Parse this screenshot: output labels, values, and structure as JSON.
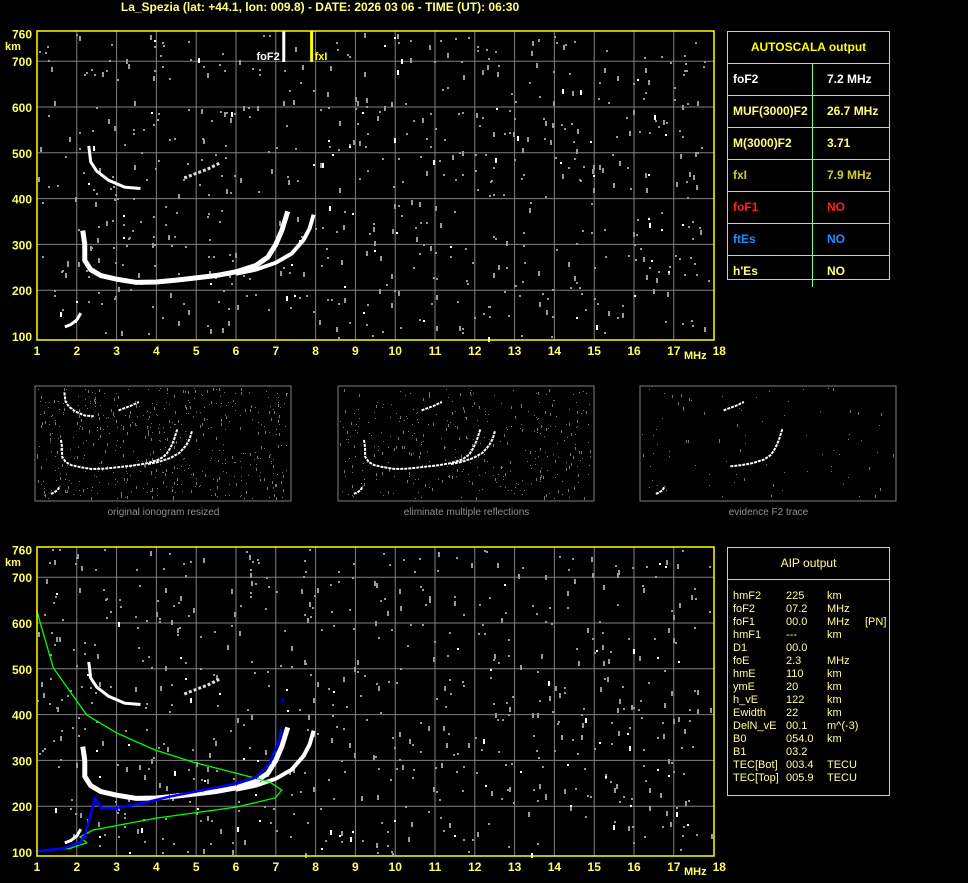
{
  "title": "La_Spezia (lat: +44.1, lon: 009.8) - DATE: 2026 03 06 - TIME (UT): 06:30",
  "autoscala": {
    "header": "AUTOSCALA output",
    "rows": [
      {
        "key": "foF2",
        "value": "7.2 MHz",
        "color": "#ffffff"
      },
      {
        "key": "MUF(3000)F2",
        "value": "26.7 MHz",
        "color": "#ffff80"
      },
      {
        "key": "M(3000)F2",
        "value": "3.71",
        "color": "#ffff80"
      },
      {
        "key": "fxI",
        "value": "7.9 MHz",
        "color": "#cccc33"
      },
      {
        "key": "foF1",
        "value": "NO",
        "color": "#ff2020"
      },
      {
        "key": "ftEs",
        "value": "NO",
        "color": "#1e8fff"
      },
      {
        "key": "h'Es",
        "value": "NO",
        "color": "#ffff80"
      }
    ]
  },
  "aip": {
    "header": "AIP output",
    "rows": [
      [
        "hmF2",
        "225",
        "km",
        ""
      ],
      [
        "foF2",
        "07.2",
        "MHz",
        ""
      ],
      [
        "foF1",
        "00.0",
        "MHz",
        "[PN]"
      ],
      [
        "hmF1",
        "---",
        "km",
        ""
      ],
      [
        "D1",
        "00.0",
        "",
        ""
      ],
      [
        "foE",
        "2.3",
        "MHz",
        ""
      ],
      [
        "hmE",
        "110",
        "km",
        ""
      ],
      [
        "ymE",
        "20",
        "km",
        ""
      ],
      [
        "h_vE",
        "122",
        "km",
        ""
      ],
      [
        "Ewidth",
        "22",
        "km",
        ""
      ],
      [
        "DelN_vE",
        "00.1",
        "m^(-3)",
        ""
      ],
      [
        "B0",
        "054.0",
        "km",
        ""
      ],
      [
        "B1",
        "03.2",
        "",
        ""
      ],
      [
        "TEC[Bot]",
        "003.4",
        "TECU",
        ""
      ],
      [
        "TEC[Top]",
        "005.9",
        "TECU",
        ""
      ]
    ]
  },
  "thumbnails": {
    "captions": [
      "original ionogram resized",
      "eliminate multiple reflections",
      "evidence F2 trace"
    ]
  },
  "markers": {
    "foF2": {
      "label": "foF2",
      "freq": 7.2,
      "color": "#ffffff"
    },
    "fxI": {
      "label": "fxI",
      "freq": 7.9,
      "color": "#ffff00"
    }
  },
  "chart_data": {
    "type": "scatter",
    "xlabel": "MHz",
    "ylabel": "km",
    "xlim": [
      1,
      18
    ],
    "ylim": [
      100,
      760
    ],
    "xticks": [
      "1",
      "2",
      "3",
      "4",
      "5",
      "6",
      "7",
      "8",
      "9",
      "10",
      "11",
      "12",
      "13",
      "14",
      "15",
      "16",
      "17",
      "18"
    ],
    "yticks": [
      "760",
      "700",
      "600",
      "500",
      "400",
      "300",
      "200",
      "100"
    ],
    "grid": true,
    "colors": {
      "axis": "#ffff00",
      "grid": "#808080",
      "label": "#ffff66",
      "trace": "#ffffff",
      "profile": "#00ff00",
      "aip_trace": "#0000ff"
    },
    "o_trace": [
      [
        2.15,
        330
      ],
      [
        2.2,
        300
      ],
      [
        2.2,
        265
      ],
      [
        2.35,
        245
      ],
      [
        2.6,
        232
      ],
      [
        3,
        224
      ],
      [
        3.5,
        217
      ],
      [
        4,
        218
      ],
      [
        4.5,
        222
      ],
      [
        5,
        227
      ],
      [
        5.5,
        232
      ],
      [
        6,
        240
      ],
      [
        6.5,
        254
      ],
      [
        6.8,
        272
      ],
      [
        7.0,
        300
      ],
      [
        7.15,
        330
      ],
      [
        7.3,
        372
      ]
    ],
    "x_trace": [
      [
        6.0,
        236
      ],
      [
        6.5,
        245
      ],
      [
        7.0,
        260
      ],
      [
        7.4,
        280
      ],
      [
        7.7,
        310
      ],
      [
        7.85,
        335
      ],
      [
        7.95,
        365
      ]
    ],
    "second_hop": [
      [
        2.3,
        515
      ],
      [
        2.35,
        480
      ],
      [
        2.5,
        460
      ],
      [
        2.8,
        440
      ],
      [
        3.2,
        425
      ],
      [
        3.6,
        422
      ]
    ],
    "second_hop_x": [
      [
        4.7,
        445
      ],
      [
        5.0,
        455
      ],
      [
        5.3,
        465
      ],
      [
        5.6,
        478
      ]
    ],
    "low_trace": [
      [
        1.7,
        120
      ],
      [
        1.85,
        125
      ],
      [
        2.0,
        135
      ],
      [
        2.1,
        150
      ]
    ],
    "profile": [
      [
        1.0,
        625
      ],
      [
        1.41,
        502
      ],
      [
        2.25,
        399
      ],
      [
        3.0,
        360
      ],
      [
        3.96,
        323
      ],
      [
        4.93,
        296
      ],
      [
        6.18,
        268
      ],
      [
        6.85,
        253
      ],
      [
        7.15,
        235
      ],
      [
        6.98,
        218
      ],
      [
        6.0,
        198
      ],
      [
        4.0,
        174
      ],
      [
        2.41,
        148
      ],
      [
        2.08,
        133
      ],
      [
        2.25,
        120
      ],
      [
        1.83,
        108
      ],
      [
        1.0,
        102
      ]
    ],
    "aip_trace": [
      [
        1.0,
        102
      ],
      [
        1.66,
        108
      ],
      [
        2.08,
        120
      ],
      [
        2.2,
        135
      ],
      [
        2.46,
        217
      ],
      [
        2.62,
        196
      ],
      [
        3.0,
        196
      ],
      [
        3.67,
        207
      ],
      [
        4.34,
        221
      ],
      [
        5.18,
        235
      ],
      [
        6.02,
        250
      ],
      [
        6.52,
        264
      ],
      [
        6.85,
        294
      ],
      [
        7.06,
        338
      ],
      [
        7.15,
        368
      ],
      [
        7.18,
        432
      ]
    ]
  }
}
